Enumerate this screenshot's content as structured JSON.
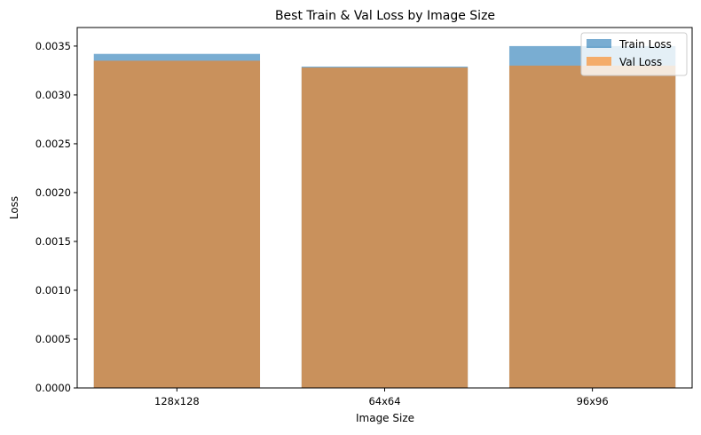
{
  "chart_data": {
    "type": "bar",
    "title": "Best Train & Val Loss by Image Size",
    "xlabel": "Image Size",
    "ylabel": "Loss",
    "categories": [
      "128x128",
      "64x64",
      "96x96"
    ],
    "series": [
      {
        "name": "Train Loss",
        "values": [
          0.00342,
          0.00329,
          0.0035
        ],
        "color": "#1f77b4",
        "alpha": 0.6
      },
      {
        "name": "Val Loss",
        "values": [
          0.00335,
          0.00328,
          0.0033
        ],
        "color": "#ff7f0e",
        "alpha": 0.6
      }
    ],
    "ylim": [
      0,
      0.00369
    ],
    "yticks": [
      "0.0000",
      "0.0005",
      "0.0010",
      "0.0015",
      "0.0020",
      "0.0025",
      "0.0030",
      "0.0035"
    ],
    "ytick_values": [
      0,
      0.0005,
      0.001,
      0.0015,
      0.002,
      0.0025,
      0.003,
      0.0035
    ],
    "grid": false,
    "legend_position": "top-right",
    "bars_overlaid": true
  }
}
